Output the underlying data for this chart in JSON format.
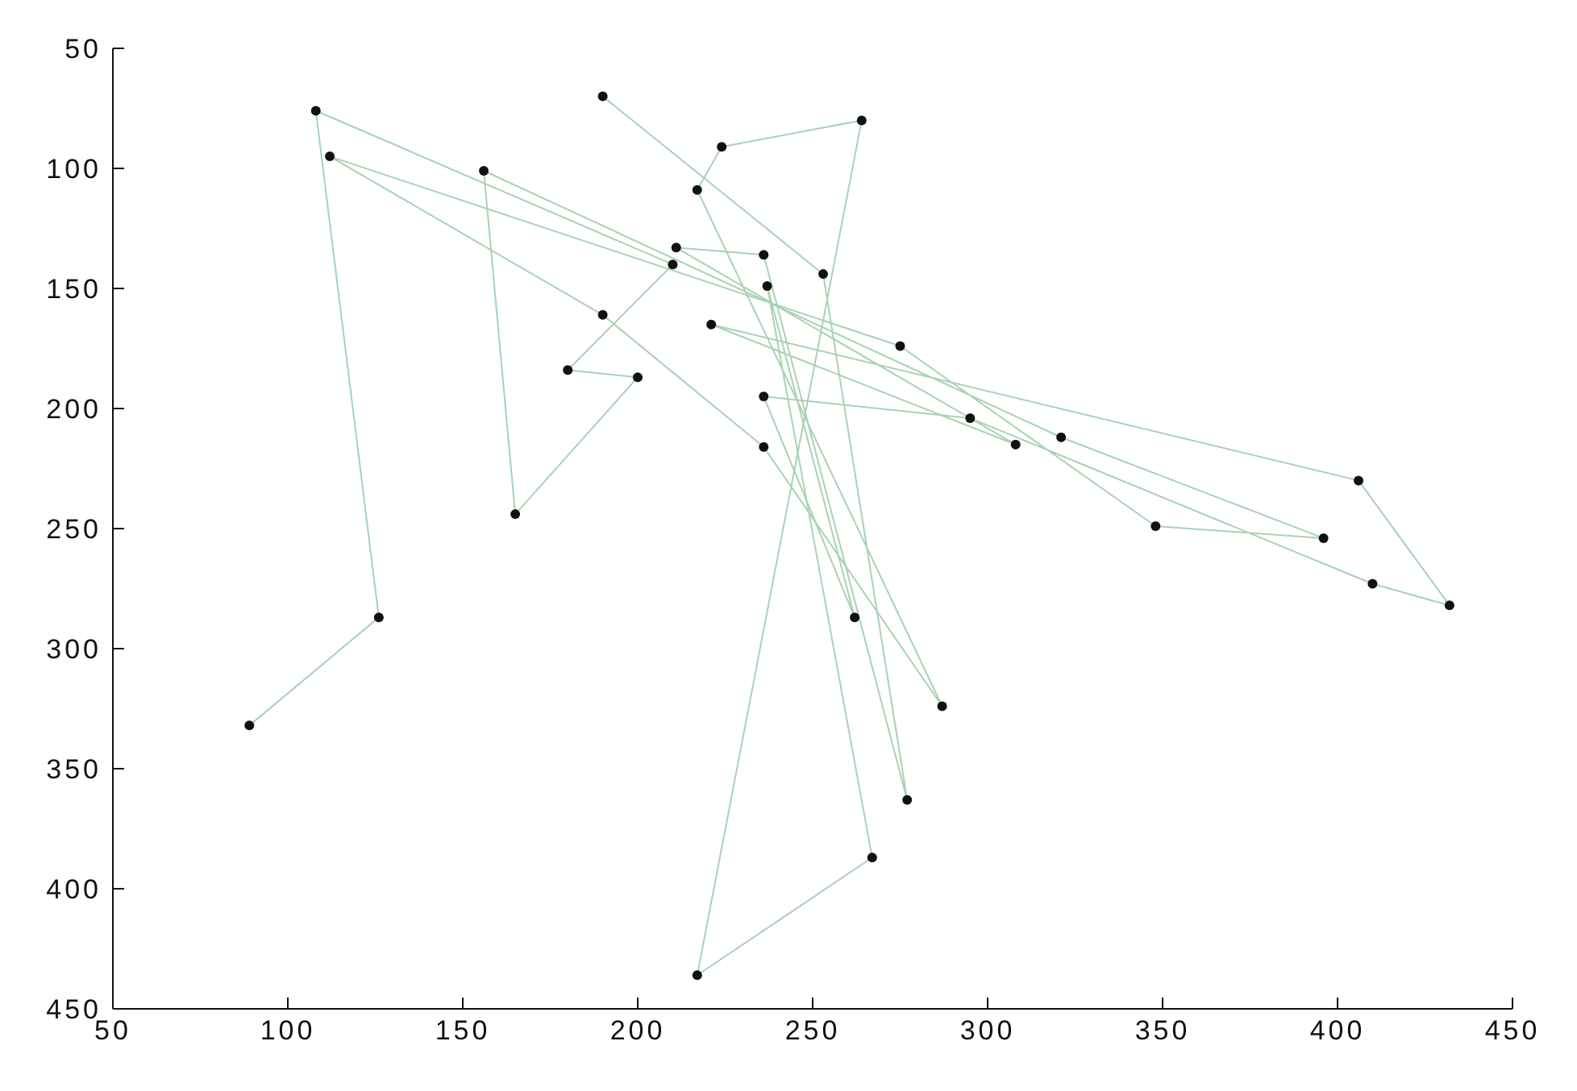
{
  "chart_data": {
    "type": "line",
    "xlim": [
      50,
      450
    ],
    "xticks": [
      50,
      100,
      150,
      200,
      250,
      300,
      350,
      400,
      450
    ],
    "ylim": [
      450,
      50
    ],
    "yticks": [
      50,
      100,
      150,
      200,
      250,
      300,
      350,
      400,
      450
    ],
    "grid": false,
    "marker": "circle",
    "line_style": "solid",
    "series": [
      {
        "color": "#a9d2b4",
        "x": [
          89,
          126,
          108,
          210,
          180,
          200,
          165,
          156,
          321,
          396,
          348,
          275,
          112,
          190,
          236,
          287,
          217,
          224,
          264,
          217,
          267,
          237,
          262,
          236,
          295,
          410,
          432,
          406,
          221,
          308,
          211,
          236,
          277,
          253,
          190
        ],
        "values": [
          332,
          287,
          76,
          140,
          184,
          187,
          244,
          101,
          212,
          254,
          249,
          174,
          95,
          161,
          216,
          324,
          109,
          91,
          80,
          436,
          387,
          149,
          287,
          195,
          204,
          273,
          282,
          230,
          165,
          215,
          133,
          136,
          363,
          144,
          70
        ]
      }
    ]
  }
}
